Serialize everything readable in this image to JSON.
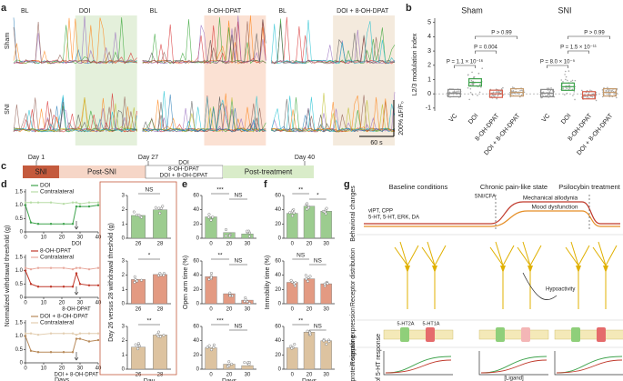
{
  "chart_data": [
    {
      "type": "traces",
      "panel": "a",
      "row_labels": [
        "Sham",
        "SNI"
      ],
      "conditions": [
        {
          "baseline": "BL",
          "treatment": "DOI",
          "color": "#e4f0db"
        },
        {
          "baseline": "BL",
          "treatment": "8-OH-DPAT",
          "color": "#fbe1d3"
        },
        {
          "baseline": "BL",
          "treatment": "DOI + 8-OH-DPAT",
          "color": "#f4eadd"
        }
      ],
      "scale_y": "200% ΔF/F₀",
      "scale_x": "60 s"
    },
    {
      "type": "box",
      "panel": "b",
      "ylabel": "L2/3 modulation index",
      "ylim": [
        -1.2,
        5.3
      ],
      "yticks": [
        -1,
        0,
        1,
        2,
        3,
        4,
        5
      ],
      "category_colors": [
        "#8c8c8c",
        "#3fa34d",
        "#d6604d",
        "#c49a6c"
      ],
      "groups": [
        {
          "name": "Sham",
          "color": "#3b5aa8",
          "categories": [
            "VC",
            "DOI",
            "8-OH-DPAT",
            "DOI + 8-OH-DPAT"
          ],
          "values": [
            0.05,
            0.8,
            0.0,
            0.1
          ],
          "annotations": [
            {
              "pair": [
                "VC",
                "DOI"
              ],
              "label": "P = 1.1 × 10⁻¹⁶"
            },
            {
              "pair": [
                "DOI",
                "8-OH-DPAT"
              ],
              "label": "P = 0.004"
            },
            {
              "pair": [
                "DOI",
                "DOI + 8-OH-DPAT"
              ],
              "label": "P > 0.99"
            }
          ]
        },
        {
          "name": "SNI",
          "color": "#d7263d",
          "categories": [
            "VC",
            "DOI",
            "8-OH-DPAT",
            "DOI + 8-OH-DPAT"
          ],
          "values": [
            0.05,
            0.5,
            -0.1,
            0.1
          ],
          "annotations": [
            {
              "pair": [
                "VC",
                "DOI"
              ],
              "label": "P = 8.0 × 10⁻⁵"
            },
            {
              "pair": [
                "DOI",
                "8-OH-DPAT"
              ],
              "label": "P = 1.5 × 10⁻¹¹"
            },
            {
              "pair": [
                "DOI",
                "DOI + 8-OH-DPAT"
              ],
              "label": "P > 0.99"
            }
          ]
        }
      ]
    },
    {
      "type": "timeline",
      "panel": "c",
      "days": [
        "Day 1",
        "Day 27",
        "Day 40"
      ],
      "segments": [
        "SNI",
        "Post-SNI",
        "Post-treatment"
      ],
      "treatments": [
        "DOI",
        "8-OH-DPAT",
        "DOI + 8-OH-DPAT"
      ]
    },
    {
      "type": "line",
      "panel": "d",
      "x": [
        0,
        3,
        7,
        14,
        21,
        26,
        28,
        30,
        35,
        40
      ],
      "xlim": [
        0,
        40
      ],
      "xticks": [
        0,
        10,
        20,
        30,
        40
      ],
      "ylim": [
        0,
        1.6
      ],
      "yticks": [
        0,
        0.5,
        {
          "value": 1,
          "label": "1.0"
        },
        1.5
      ],
      "annotation": {
        "text": "DOI",
        "x": 28
      },
      "series": [
        {
          "name": "DOI",
          "color": "#3fa34d",
          "values": [
            1.0,
            0.35,
            0.3,
            0.3,
            0.3,
            0.3,
            0.95,
            0.95,
            0.95,
            1.0
          ]
        },
        {
          "name": "Contralateral",
          "color": "#b7dca6",
          "values": [
            1.1,
            1.1,
            1.1,
            1.1,
            1.05,
            1.1,
            1.1,
            1.05,
            1.1,
            1.1
          ]
        }
      ]
    },
    {
      "type": "line",
      "ylabel": "Normalized withdrawal threshold (g)",
      "x": [
        0,
        3,
        7,
        14,
        21,
        26,
        28,
        30,
        35,
        40
      ],
      "xlim": [
        0,
        40
      ],
      "xticks": [
        0,
        10,
        20,
        30,
        40
      ],
      "ylim": [
        0,
        1.6
      ],
      "yticks": [
        0,
        0.5,
        {
          "value": 1,
          "label": "1.0"
        },
        1.5
      ],
      "annotation": {
        "text": "8-OH-DPAT",
        "x": 28
      },
      "series": [
        {
          "name": "8-OH-DPAT",
          "color": "#c0392b",
          "values": [
            1.0,
            0.5,
            0.4,
            0.4,
            0.4,
            0.4,
            0.9,
            0.5,
            0.45,
            0.45
          ]
        },
        {
          "name": "Contralateral",
          "color": "#e8a89c",
          "values": [
            1.1,
            1.05,
            1.1,
            1.1,
            1.1,
            1.05,
            1.1,
            1.1,
            1.05,
            1.1
          ]
        }
      ]
    },
    {
      "type": "line",
      "xlabel": "Days",
      "x": [
        0,
        3,
        7,
        14,
        21,
        26,
        28,
        30,
        35,
        40
      ],
      "xlim": [
        0,
        40
      ],
      "xticks": [
        0,
        10,
        20,
        30,
        40
      ],
      "ylim": [
        0,
        1.6
      ],
      "yticks": [
        0,
        0.5,
        {
          "value": 1,
          "label": "1.0"
        },
        1.5
      ],
      "annotation": {
        "text": "DOI + 8-OH-DPAT",
        "x": 28
      },
      "series": [
        {
          "name": "DOI + 8-OH-DPAT",
          "color": "#b88a5a",
          "values": [
            1.0,
            0.45,
            0.4,
            0.4,
            0.4,
            0.4,
            0.9,
            0.9,
            0.8,
            0.85
          ]
        },
        {
          "name": "Contralateral",
          "color": "#e2cdb0",
          "values": [
            1.1,
            1.1,
            1.05,
            1.1,
            1.1,
            1.1,
            1.05,
            1.1,
            1.1,
            1.1
          ]
        }
      ]
    },
    {
      "type": "bar",
      "categories": [
        "26",
        "28"
      ],
      "values": [
        1.6,
        2.0
      ],
      "color": "#9ccc8f",
      "ylim": [
        0,
        3
      ],
      "yticks": [
        0,
        1,
        2,
        3
      ],
      "comparisons": [
        {
          "pair": [
            "26",
            "28"
          ],
          "label": "NS"
        }
      ]
    },
    {
      "type": "bar",
      "ylabel": "Day 26 versus 28 withdrawal threshold (g)",
      "categories": [
        "26",
        "28"
      ],
      "values": [
        1.7,
        2.05
      ],
      "color": "#e39a82",
      "ylim": [
        0,
        3
      ],
      "yticks": [
        0,
        1,
        2,
        3
      ],
      "comparisons": [
        {
          "pair": [
            "26",
            "28"
          ],
          "label": "*"
        }
      ]
    },
    {
      "type": "bar",
      "xlabel": "Day",
      "categories": [
        "26",
        "28"
      ],
      "values": [
        1.55,
        2.4
      ],
      "color": "#ddc3a0",
      "ylim": [
        0,
        3
      ],
      "yticks": [
        0,
        1,
        2,
        3
      ],
      "comparisons": [
        {
          "pair": [
            "26",
            "28"
          ],
          "label": "**"
        }
      ]
    },
    {
      "type": "bar",
      "panel": "e",
      "categories": [
        "0",
        "20",
        "30"
      ],
      "values": [
        30,
        8,
        6
      ],
      "color": "#9ccc8f",
      "ylim": [
        0,
        60
      ],
      "yticks": [
        0,
        20,
        40,
        60
      ],
      "comparisons": [
        {
          "pair": [
            "0",
            "20"
          ],
          "label": "***"
        },
        {
          "pair": [
            "20",
            "30"
          ],
          "label": "NS"
        }
      ]
    },
    {
      "type": "bar",
      "ylabel": "Open arm time (%)",
      "categories": [
        "0",
        "20",
        "30"
      ],
      "values": [
        38,
        14,
        5
      ],
      "color": "#e39a82",
      "ylim": [
        0,
        60
      ],
      "yticks": [
        0,
        20,
        40,
        60
      ],
      "comparisons": [
        {
          "pair": [
            "0",
            "20"
          ],
          "label": "**"
        },
        {
          "pair": [
            "20",
            "30"
          ],
          "label": "NS"
        }
      ]
    },
    {
      "type": "bar",
      "xlabel": "Days",
      "categories": [
        "0",
        "20",
        "30"
      ],
      "values": [
        30,
        7,
        5
      ],
      "color": "#ddc3a0",
      "ylim": [
        0,
        60
      ],
      "yticks": [
        0,
        20,
        40,
        60
      ],
      "comparisons": [
        {
          "pair": [
            "0",
            "20"
          ],
          "label": "***"
        },
        {
          "pair": [
            "20",
            "30"
          ],
          "label": "NS"
        }
      ]
    },
    {
      "type": "bar",
      "panel": "f",
      "categories": [
        "0",
        "20",
        "30"
      ],
      "values": [
        35,
        45,
        38
      ],
      "color": "#9ccc8f",
      "ylim": [
        0,
        60
      ],
      "yticks": [
        0,
        20,
        40,
        60
      ],
      "comparisons": [
        {
          "pair": [
            "0",
            "20"
          ],
          "label": "**"
        },
        {
          "pair": [
            "20",
            "30"
          ],
          "label": "*"
        }
      ]
    },
    {
      "type": "bar",
      "ylabel": "Immobility time (%)",
      "categories": [
        "0",
        "20",
        "30"
      ],
      "values": [
        30,
        35,
        28
      ],
      "color": "#e39a82",
      "ylim": [
        0,
        60
      ],
      "yticks": [
        0,
        20,
        40,
        60
      ],
      "comparisons": [
        {
          "pair": [
            "0",
            "20"
          ],
          "label": "NS"
        },
        {
          "pair": [
            "20",
            "30"
          ],
          "label": "NS"
        }
      ]
    },
    {
      "type": "bar",
      "xlabel": "Days",
      "categories": [
        "0",
        "20",
        "30"
      ],
      "values": [
        30,
        52,
        40
      ],
      "color": "#ddc3a0",
      "ylim": [
        0,
        60
      ],
      "yticks": [
        0,
        20,
        40,
        60
      ],
      "comparisons": [
        {
          "pair": [
            "0",
            "20"
          ],
          "label": "**"
        },
        {
          "pair": [
            "20",
            "30"
          ],
          "label": "NS"
        }
      ]
    }
  ],
  "diagram": {
    "panel": "g",
    "columns": [
      "Baseline conditions",
      "Chronic pain-like state",
      "Psilocybin treatment"
    ],
    "rows": [
      "Behavioral changes",
      "Receptor distribution",
      "Receptor expression",
      "G-protein signaling"
    ],
    "labels": {
      "injury": "SNI/CFA",
      "allodynia": "Mechanical allodynia",
      "mood": "Mood dysfunction",
      "behavior1": "vlPT, CPP",
      "behavior2": "5-HT, 5-HT, ERK, DA",
      "activity": "Hypoactivity",
      "r2a": "5-HT2A",
      "r1a": "5-HT1A",
      "ylabel": "% of 5-HT response",
      "xlabel": "[Ligand]"
    }
  }
}
